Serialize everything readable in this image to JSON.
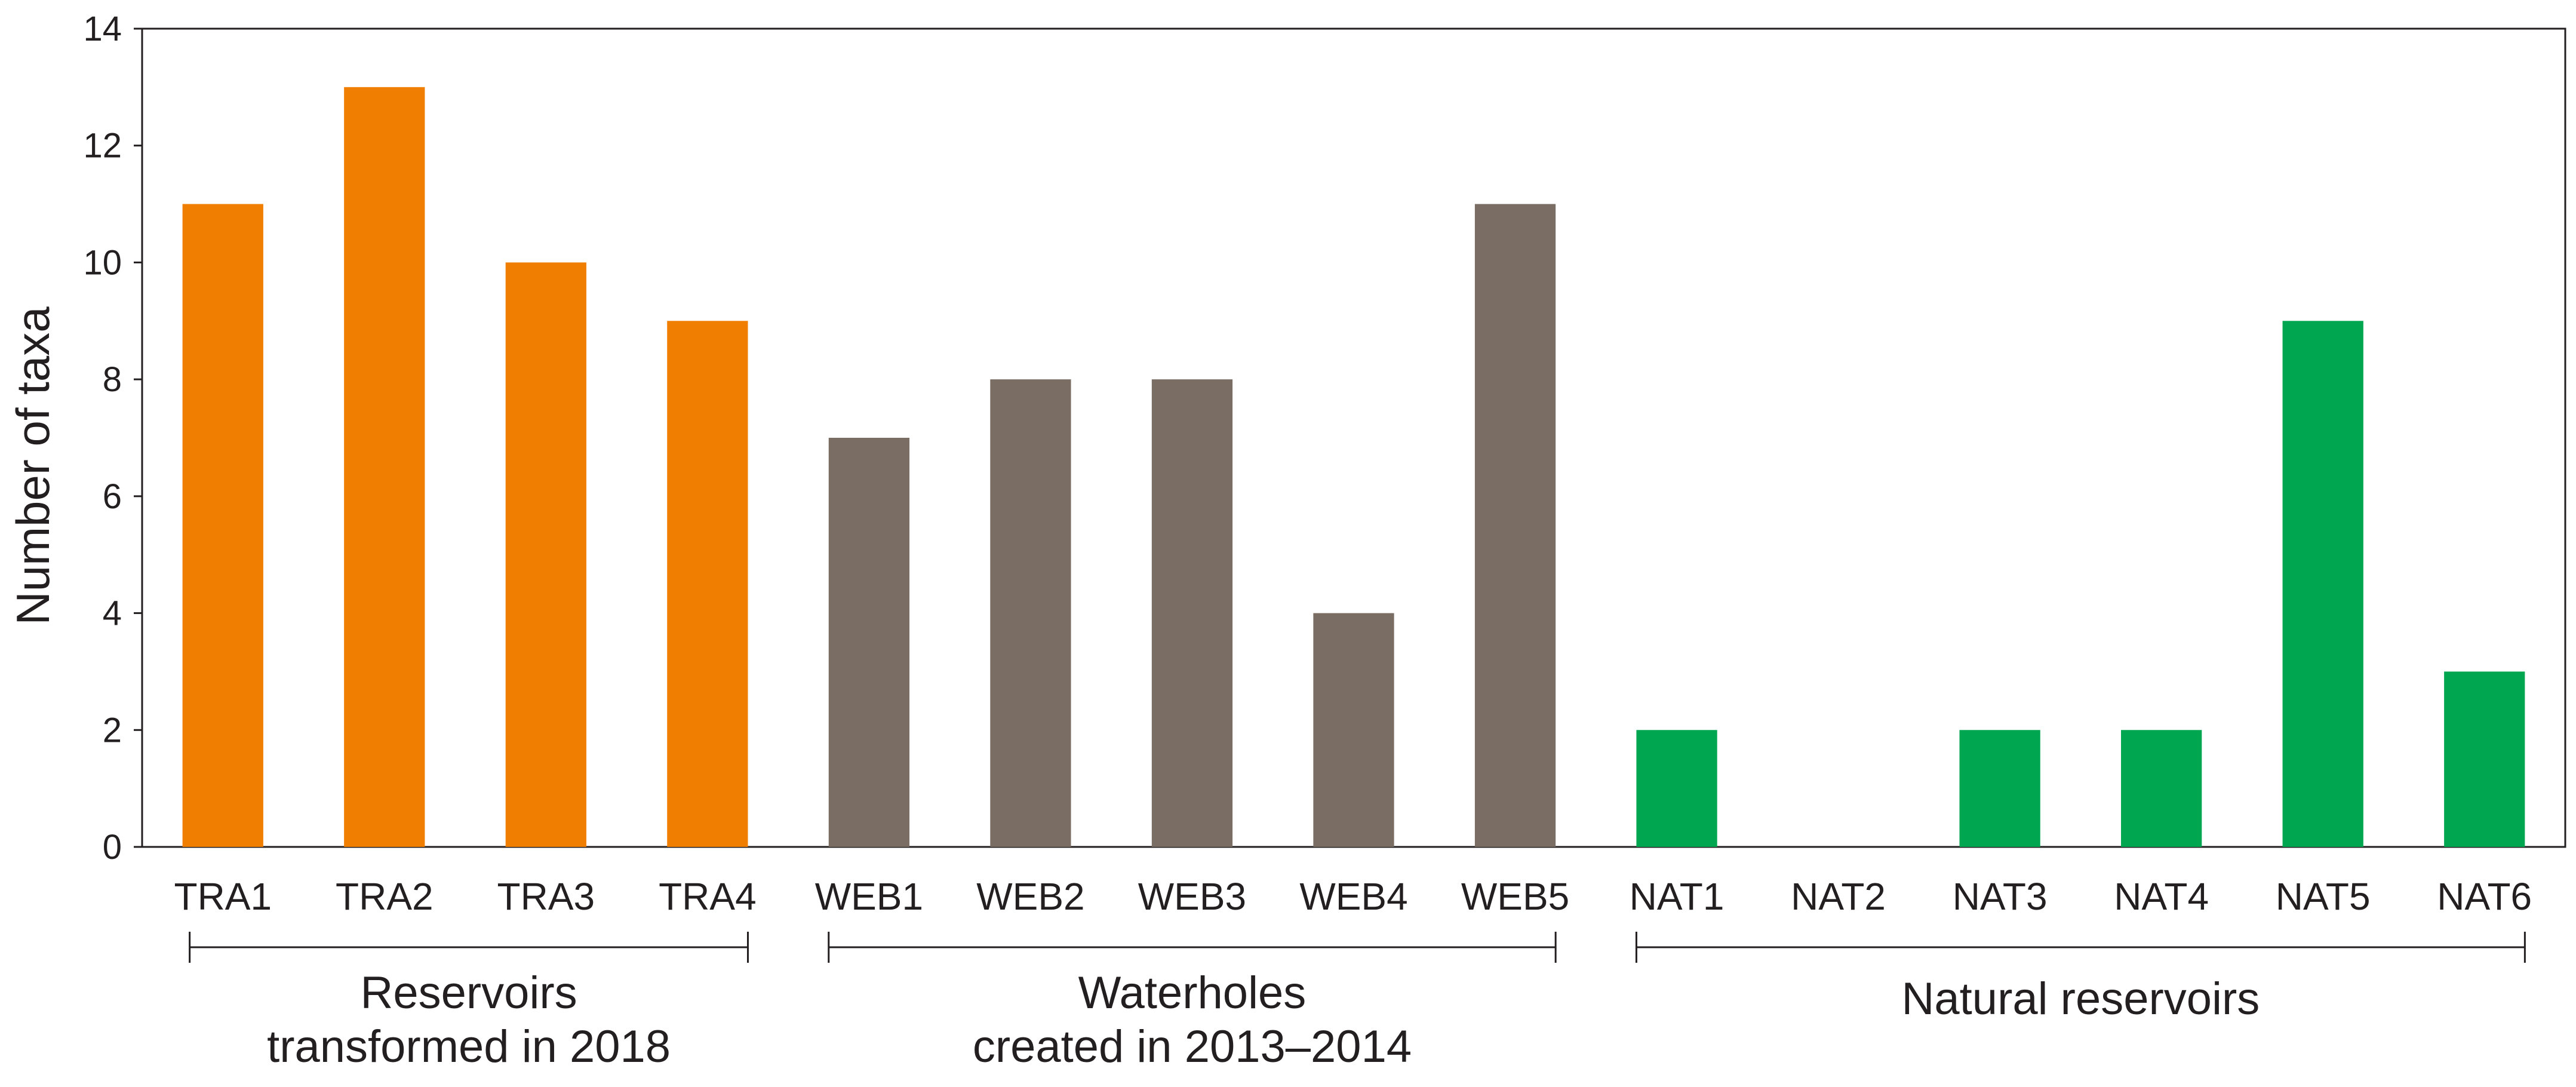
{
  "chart_data": {
    "type": "bar",
    "title": "",
    "xlabel": "",
    "ylabel": "Number of taxa",
    "ylim": [
      0,
      14
    ],
    "yticks": [
      0,
      2,
      4,
      6,
      8,
      10,
      12,
      14
    ],
    "grid": false,
    "categories": [
      "TRA1",
      "TRA2",
      "TRA3",
      "TRA4",
      "WEB1",
      "WEB2",
      "WEB3",
      "WEB4",
      "WEB5",
      "NAT1",
      "NAT2",
      "NAT3",
      "NAT4",
      "NAT5",
      "NAT6"
    ],
    "values": [
      11,
      13,
      10,
      9,
      7,
      8,
      8,
      4,
      11,
      2,
      0,
      2,
      2,
      9,
      3
    ],
    "bar_colors": [
      "#f07e00",
      "#f07e00",
      "#f07e00",
      "#f07e00",
      "#7a6d64",
      "#7a6d64",
      "#7a6d64",
      "#7a6d64",
      "#7a6d64",
      "#00a650",
      "#00a650",
      "#00a650",
      "#00a650",
      "#00a650",
      "#00a650"
    ],
    "groups": [
      {
        "lines": [
          "Reservoirs",
          "transformed  in 2018"
        ],
        "from": 0,
        "to": 3
      },
      {
        "lines": [
          "Waterholes",
          "created in 2013–2014"
        ],
        "from": 4,
        "to": 8
      },
      {
        "lines": [
          "Natural reservoirs"
        ],
        "from": 9,
        "to": 14
      }
    ]
  }
}
